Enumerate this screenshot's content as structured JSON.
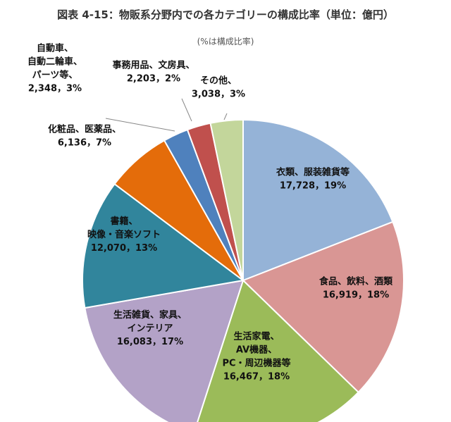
{
  "header": {
    "title": "図表 4-15：物販系分野内での各カテゴリーの構成比率（単位：億円）",
    "subtitle": "(%は構成比率)"
  },
  "chart_data": {
    "type": "pie",
    "title": "図表 4-15：物販系分野内での各カテゴリーの構成比率（単位：億円）",
    "subtitle": "(%は構成比率)",
    "unit": "億円",
    "slices": [
      {
        "name": "衣類、服装雑貨等",
        "value": 17728,
        "percent": 19,
        "color": "#95B3D7",
        "label_lines": [
          "衣類、服装雑貨等",
          "17,728，19%"
        ]
      },
      {
        "name": "食品、飲料、酒類",
        "value": 16919,
        "percent": 18,
        "color": "#D99694",
        "label_lines": [
          "食品、飲料、酒類",
          "16,919，18%"
        ]
      },
      {
        "name": "生活家電、AV機器、PC・周辺機器等",
        "value": 16467,
        "percent": 18,
        "color": "#9BBB59",
        "label_lines": [
          "生活家電、",
          "AV機器、",
          "PC・周辺機器等",
          "16,467，18%"
        ]
      },
      {
        "name": "生活雑貨、家具、インテリア",
        "value": 16083,
        "percent": 17,
        "color": "#B3A2C7",
        "label_lines": [
          "生活雑貨、家具、",
          "インテリア",
          "16,083，17%"
        ]
      },
      {
        "name": "書籍、映像・音楽ソフト",
        "value": 12070,
        "percent": 13,
        "color": "#31859C",
        "label_lines": [
          "書籍、",
          "映像・音楽ソフト",
          "12,070，13%"
        ]
      },
      {
        "name": "化粧品、医薬品",
        "value": 6136,
        "percent": 7,
        "color": "#E46C0A",
        "label_lines": [
          "化粧品、医薬品、",
          "6,136，7%"
        ]
      },
      {
        "name": "自動車、自動二輪車、パーツ等",
        "value": 2348,
        "percent": 3,
        "color": "#4F81BD",
        "label_lines": [
          "自動車、",
          "自動二輪車、",
          "パーツ等、",
          "2,348，3%"
        ]
      },
      {
        "name": "事務用品、文房具",
        "value": 2203,
        "percent": 2,
        "color": "#C0504D",
        "label_lines": [
          "事務用品、文房具、",
          "2,203，2%"
        ]
      },
      {
        "name": "その他",
        "value": 3038,
        "percent": 3,
        "color": "#C3D69B",
        "label_lines": [
          "その他、",
          "3,038，3%"
        ]
      }
    ],
    "start_angle_deg": 0,
    "direction": "clockwise",
    "legend": "none"
  }
}
